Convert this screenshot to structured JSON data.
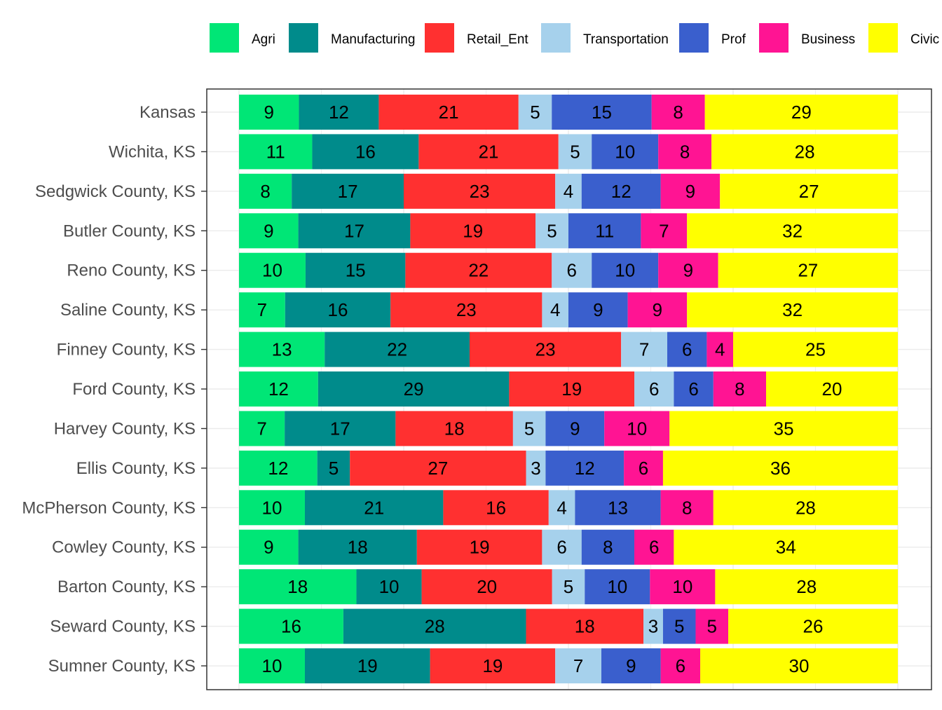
{
  "chart_data": {
    "type": "bar",
    "orientation": "horizontal",
    "stacked": true,
    "title": "",
    "xlabel": "",
    "ylabel": "",
    "xlim": [
      0,
      100
    ],
    "grid": true,
    "legend_position": "top",
    "categories": [
      "Kansas",
      "Wichita, KS",
      "Sedgwick County, KS",
      "Butler County, KS",
      "Reno County, KS",
      "Saline County, KS",
      "Finney County, KS",
      "Ford County, KS",
      "Harvey County, KS",
      "Ellis County, KS",
      "McPherson County, KS",
      "Cowley County, KS",
      "Barton County, KS",
      "Seward County, KS",
      "Sumner County, KS"
    ],
    "series": [
      {
        "name": "Agri",
        "color": "#00E676",
        "values": [
          9,
          11,
          8,
          9,
          10,
          7,
          13,
          12,
          7,
          12,
          10,
          9,
          18,
          16,
          10
        ]
      },
      {
        "name": "Manufacturing",
        "color": "#008B8B",
        "values": [
          12,
          16,
          17,
          17,
          15,
          16,
          22,
          29,
          17,
          5,
          21,
          18,
          10,
          28,
          19
        ]
      },
      {
        "name": "Retail_Ent",
        "color": "#FF3030",
        "values": [
          21,
          21,
          23,
          19,
          22,
          23,
          23,
          19,
          18,
          27,
          16,
          19,
          20,
          18,
          19
        ]
      },
      {
        "name": "Transportation",
        "color": "#A6D1EC",
        "values": [
          5,
          5,
          4,
          5,
          6,
          4,
          7,
          6,
          5,
          3,
          4,
          6,
          5,
          3,
          7
        ]
      },
      {
        "name": "Prof",
        "color": "#3A5FCD",
        "values": [
          15,
          10,
          12,
          11,
          10,
          9,
          6,
          6,
          9,
          12,
          13,
          8,
          10,
          5,
          9
        ]
      },
      {
        "name": "Business",
        "color": "#FF1493",
        "values": [
          8,
          8,
          9,
          7,
          9,
          9,
          4,
          8,
          10,
          6,
          8,
          6,
          10,
          5,
          6
        ]
      },
      {
        "name": "Civic",
        "color": "#FFFF00",
        "values": [
          29,
          28,
          27,
          32,
          27,
          32,
          25,
          20,
          35,
          36,
          28,
          34,
          28,
          26,
          30
        ]
      }
    ]
  }
}
